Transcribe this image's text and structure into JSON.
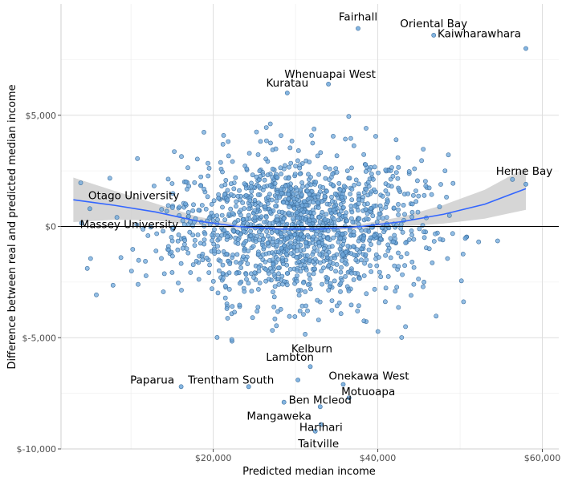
{
  "chart_data": {
    "type": "scatter",
    "xlabel": "Predicted median income",
    "ylabel": "Difference between real and predicted median income",
    "xlim": [
      1500,
      62000
    ],
    "ylim": [
      -10000,
      10000
    ],
    "x_ticks": [
      {
        "value": 20000,
        "label": "$20,000"
      },
      {
        "value": 40000,
        "label": "$40,000"
      },
      {
        "value": 60000,
        "label": "$60,000"
      }
    ],
    "y_ticks": [
      {
        "value": 5000,
        "label": "$5,000"
      },
      {
        "value": 0,
        "label": "$0"
      },
      {
        "value": -5000,
        "label": "$-5,000"
      },
      {
        "value": -10000,
        "label": "$-10,000"
      }
    ],
    "grid": true,
    "reference_line_y": 0,
    "point_color": "#6fa8dc",
    "point_stroke": "#3d6f9e",
    "smooth_color": "#3366ff",
    "band_color": "#cccccc",
    "background_cluster": {
      "center_x": 30000,
      "center_y": 0,
      "spread_x": 7500,
      "spread_y": 1700,
      "count": 1500
    },
    "smooth": {
      "x": [
        3000,
        8000,
        13000,
        18000,
        23000,
        28000,
        33000,
        38000,
        43000,
        48000,
        53000,
        58000
      ],
      "y": [
        1200,
        950,
        650,
        250,
        0,
        -120,
        -120,
        0,
        220,
        550,
        1000,
        1700
      ],
      "se": [
        1000,
        650,
        380,
        200,
        110,
        90,
        90,
        110,
        220,
        420,
        650,
        950
      ]
    },
    "labeled_points": [
      {
        "label": "Fairhall",
        "x": 37600,
        "y": 8900
      },
      {
        "label": "Oriental Bay",
        "x": 46800,
        "y": 8600
      },
      {
        "label": "Kaiwharawhara",
        "x": 58000,
        "y": 8000
      },
      {
        "label": "Kuratau",
        "x": 29000,
        "y": 6000
      },
      {
        "label": "Whenuapai West",
        "x": 34000,
        "y": 6400
      },
      {
        "label": "Herne Bay",
        "x": 58000,
        "y": 1900
      },
      {
        "label": "Otago University",
        "x": 5000,
        "y": 800
      },
      {
        "label": "Massey University",
        "x": 4000,
        "y": 150
      },
      {
        "label": "Kelburn",
        "x": 31800,
        "y": -6300
      },
      {
        "label": "Lambton",
        "x": 30300,
        "y": -6900
      },
      {
        "label": "Onekawa West",
        "x": 35800,
        "y": -7100
      },
      {
        "label": "Motuoapa",
        "x": 36500,
        "y": -7700
      },
      {
        "label": "Paparua",
        "x": 16100,
        "y": -7200
      },
      {
        "label": "Trentham South",
        "x": 24300,
        "y": -7200
      },
      {
        "label": "Ben Mcleod",
        "x": 33000,
        "y": -8100
      },
      {
        "label": "Mangaweka",
        "x": 28600,
        "y": -7900
      },
      {
        "label": "Harihari",
        "x": 33100,
        "y": -8900
      },
      {
        "label": "Taitville",
        "x": 32400,
        "y": -9200
      }
    ]
  }
}
